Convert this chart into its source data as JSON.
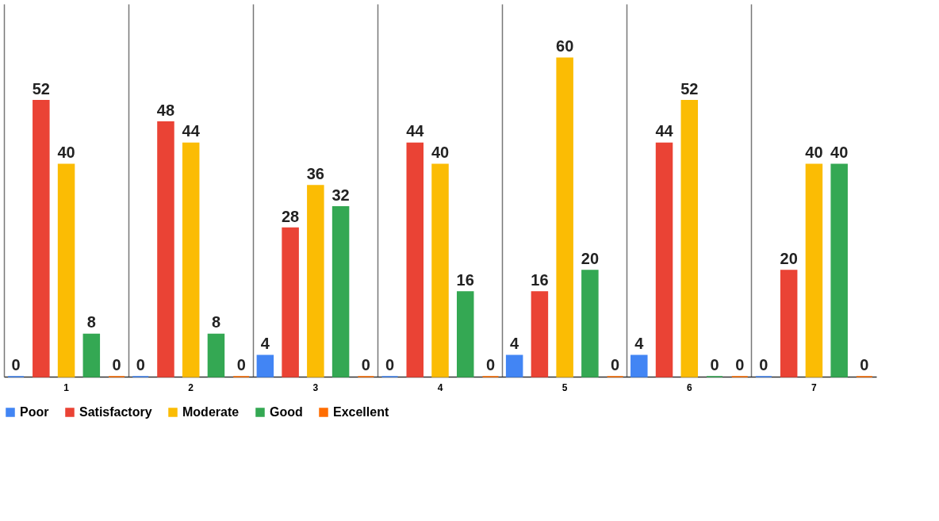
{
  "chart_data": {
    "type": "bar",
    "categories": [
      "1",
      "2",
      "3",
      "4",
      "5",
      "6",
      "7"
    ],
    "series": [
      {
        "name": "Poor",
        "color": "#4285f4",
        "values": [
          0,
          0,
          4,
          0,
          4,
          4,
          0
        ]
      },
      {
        "name": "Satisfactory",
        "color": "#ea4335",
        "values": [
          52,
          48,
          28,
          44,
          16,
          44,
          20
        ]
      },
      {
        "name": "Moderate",
        "color": "#fbbc04",
        "values": [
          40,
          44,
          36,
          40,
          60,
          52,
          40
        ]
      },
      {
        "name": "Good",
        "color": "#34a853",
        "values": [
          8,
          8,
          32,
          16,
          20,
          0,
          40
        ]
      },
      {
        "name": "Excellent",
        "color": "#ff6d01",
        "values": [
          0,
          0,
          0,
          0,
          0,
          0,
          0
        ]
      }
    ],
    "data_labels": true,
    "grid": "x",
    "legend": "bottom",
    "tick_labels": "x"
  }
}
